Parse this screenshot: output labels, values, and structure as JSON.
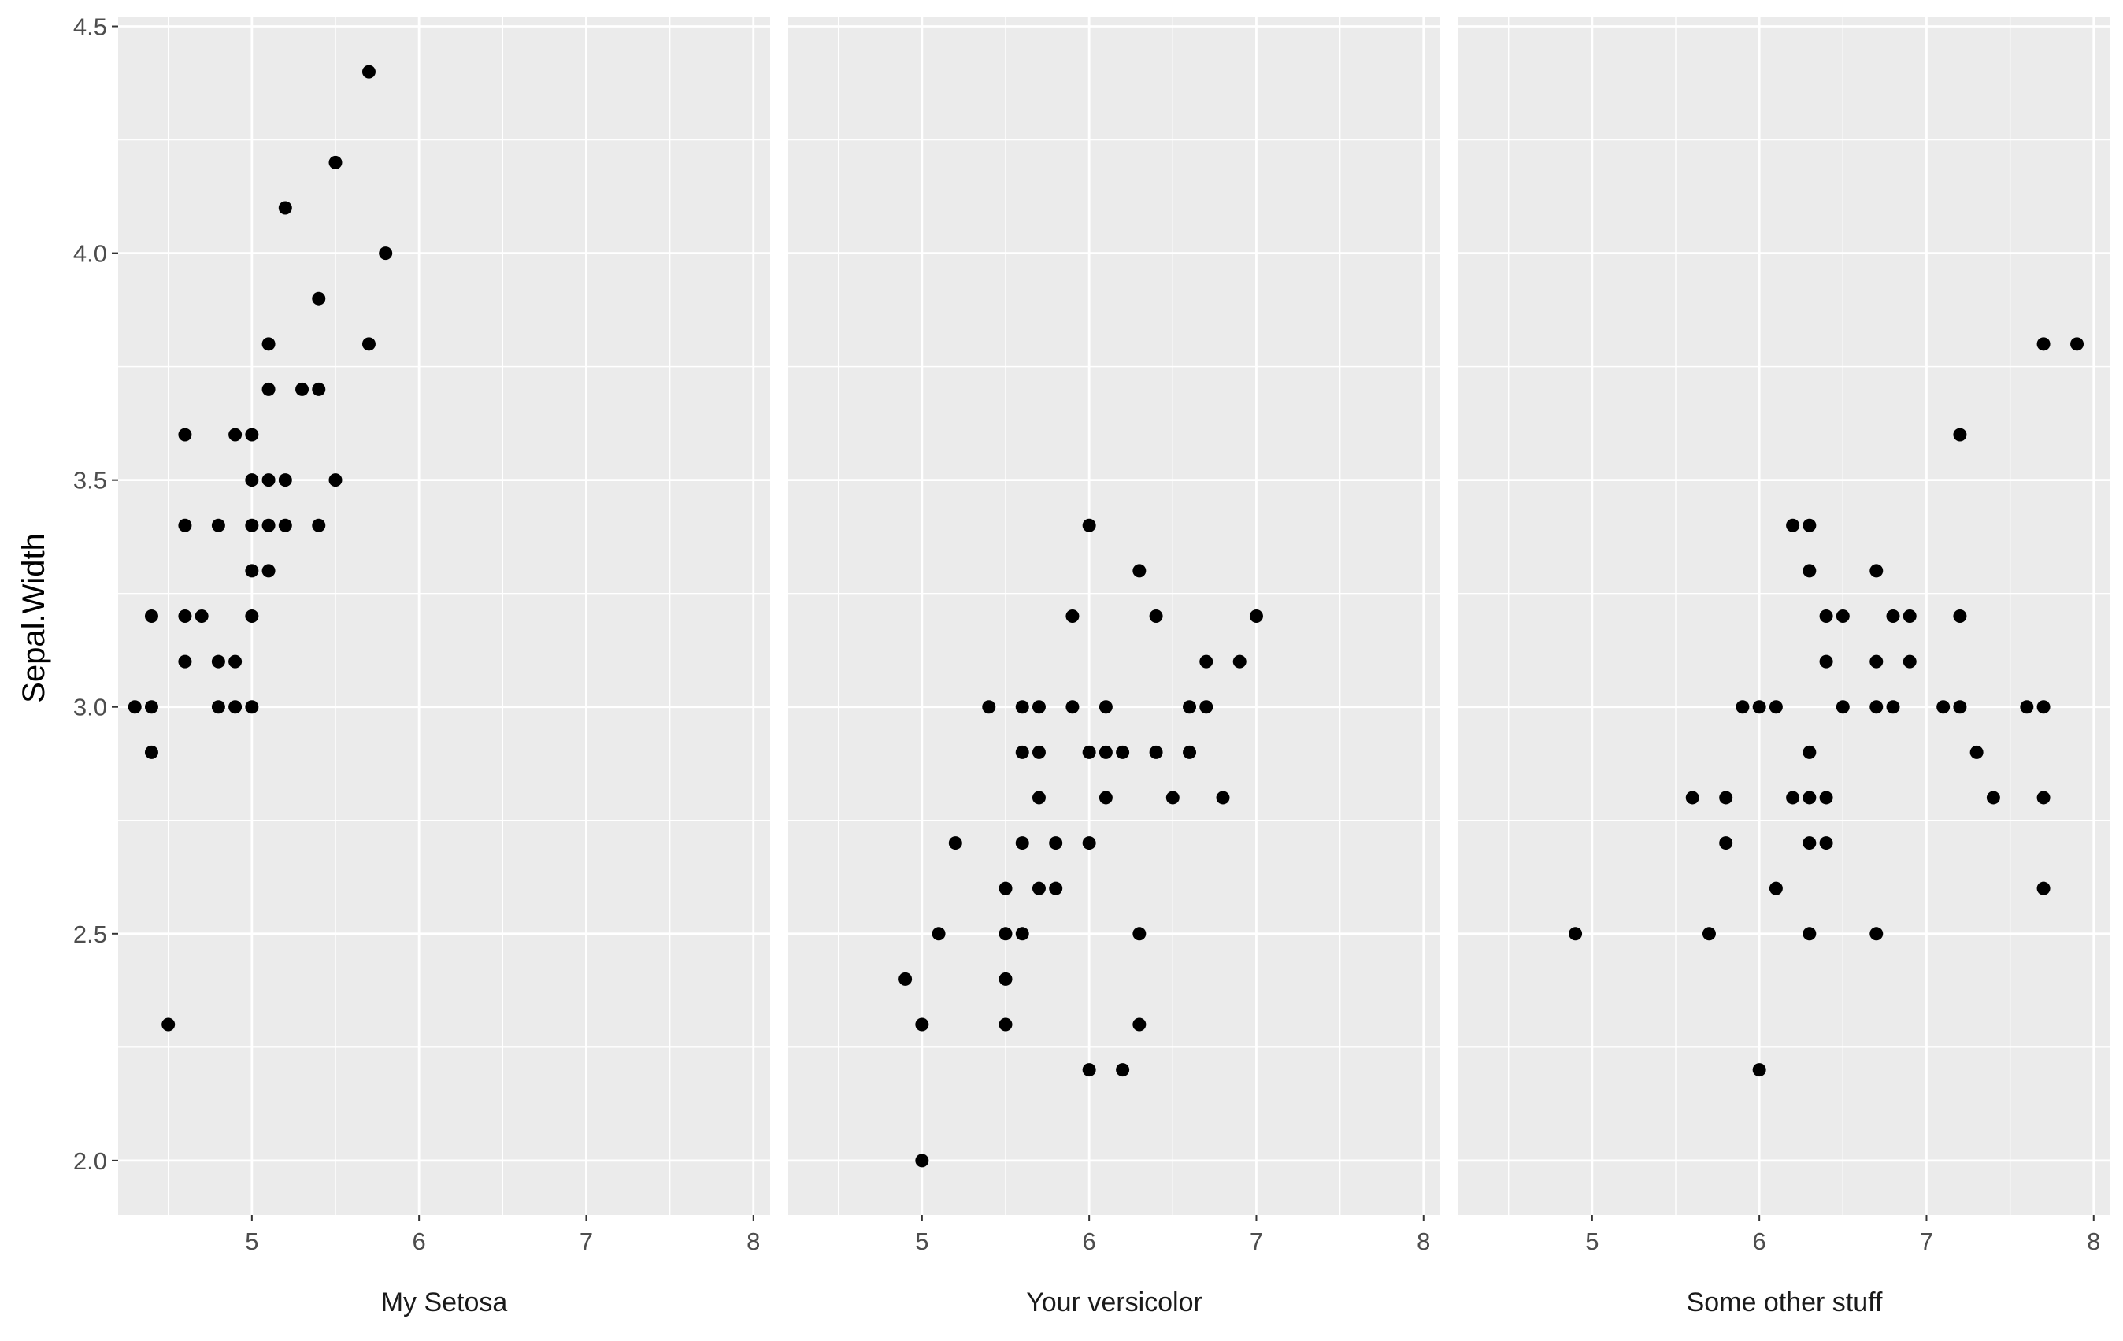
{
  "chart_data": {
    "type": "scatter",
    "ylabel": "Sepal.Width",
    "xlabel": "",
    "xlim": [
      4.2,
      8.1
    ],
    "ylim": [
      1.88,
      4.52
    ],
    "x_ticks": [
      "5",
      "6",
      "7",
      "8"
    ],
    "y_ticks": [
      "2.0",
      "2.5",
      "3.0",
      "3.5",
      "4.0",
      "4.5"
    ],
    "colors": {
      "panel": "#ebebeb",
      "grid": "#ffffff",
      "point": "#000000",
      "tick": "#4d4d4d"
    },
    "facets": [
      {
        "label": "My Setosa",
        "points": [
          [
            4.3,
            3.0
          ],
          [
            4.4,
            3.0
          ],
          [
            4.4,
            3.2
          ],
          [
            4.4,
            2.9
          ],
          [
            4.5,
            2.3
          ],
          [
            4.6,
            3.6
          ],
          [
            4.6,
            3.4
          ],
          [
            4.6,
            3.2
          ],
          [
            4.6,
            3.1
          ],
          [
            4.7,
            3.2
          ],
          [
            4.8,
            3.4
          ],
          [
            4.8,
            3.1
          ],
          [
            4.8,
            3.0
          ],
          [
            4.9,
            3.6
          ],
          [
            4.9,
            3.1
          ],
          [
            4.9,
            3.0
          ],
          [
            5.0,
            3.6
          ],
          [
            5.0,
            3.5
          ],
          [
            5.0,
            3.4
          ],
          [
            5.0,
            3.3
          ],
          [
            5.0,
            3.2
          ],
          [
            5.0,
            3.0
          ],
          [
            5.1,
            3.8
          ],
          [
            5.1,
            3.7
          ],
          [
            5.1,
            3.5
          ],
          [
            5.1,
            3.4
          ],
          [
            5.1,
            3.3
          ],
          [
            5.2,
            4.1
          ],
          [
            5.2,
            3.5
          ],
          [
            5.2,
            3.4
          ],
          [
            5.3,
            3.7
          ],
          [
            5.4,
            3.9
          ],
          [
            5.4,
            3.7
          ],
          [
            5.4,
            3.4
          ],
          [
            5.5,
            4.2
          ],
          [
            5.5,
            3.5
          ],
          [
            5.7,
            4.4
          ],
          [
            5.7,
            3.8
          ],
          [
            5.8,
            4.0
          ]
        ]
      },
      {
        "label": "Your versicolor",
        "points": [
          [
            4.9,
            2.4
          ],
          [
            5.0,
            2.3
          ],
          [
            5.0,
            2.0
          ],
          [
            5.1,
            2.5
          ],
          [
            5.2,
            2.7
          ],
          [
            5.4,
            3.0
          ],
          [
            5.5,
            2.6
          ],
          [
            5.5,
            2.5
          ],
          [
            5.5,
            2.4
          ],
          [
            5.5,
            2.3
          ],
          [
            5.6,
            3.0
          ],
          [
            5.6,
            2.9
          ],
          [
            5.6,
            2.7
          ],
          [
            5.6,
            2.5
          ],
          [
            5.7,
            3.0
          ],
          [
            5.7,
            2.9
          ],
          [
            5.7,
            2.8
          ],
          [
            5.7,
            2.6
          ],
          [
            5.8,
            2.7
          ],
          [
            5.8,
            2.6
          ],
          [
            5.9,
            3.2
          ],
          [
            5.9,
            3.0
          ],
          [
            6.0,
            3.4
          ],
          [
            6.0,
            2.9
          ],
          [
            6.0,
            2.7
          ],
          [
            6.0,
            2.2
          ],
          [
            6.1,
            3.0
          ],
          [
            6.1,
            2.9
          ],
          [
            6.1,
            2.8
          ],
          [
            6.2,
            2.9
          ],
          [
            6.2,
            2.2
          ],
          [
            6.3,
            3.3
          ],
          [
            6.3,
            2.5
          ],
          [
            6.3,
            2.3
          ],
          [
            6.4,
            3.2
          ],
          [
            6.4,
            2.9
          ],
          [
            6.5,
            2.8
          ],
          [
            6.6,
            3.0
          ],
          [
            6.6,
            2.9
          ],
          [
            6.7,
            3.1
          ],
          [
            6.7,
            3.0
          ],
          [
            6.8,
            2.8
          ],
          [
            6.9,
            3.1
          ],
          [
            7.0,
            3.2
          ]
        ]
      },
      {
        "label": "Some other stuff",
        "points": [
          [
            4.9,
            2.5
          ],
          [
            5.6,
            2.8
          ],
          [
            5.7,
            2.5
          ],
          [
            5.8,
            2.8
          ],
          [
            5.8,
            2.7
          ],
          [
            5.9,
            3.0
          ],
          [
            6.0,
            3.0
          ],
          [
            6.0,
            2.2
          ],
          [
            6.1,
            3.0
          ],
          [
            6.1,
            2.6
          ],
          [
            6.2,
            3.4
          ],
          [
            6.2,
            2.8
          ],
          [
            6.3,
            3.4
          ],
          [
            6.3,
            3.3
          ],
          [
            6.3,
            2.9
          ],
          [
            6.3,
            2.8
          ],
          [
            6.3,
            2.7
          ],
          [
            6.3,
            2.5
          ],
          [
            6.4,
            3.2
          ],
          [
            6.4,
            3.1
          ],
          [
            6.4,
            2.8
          ],
          [
            6.4,
            2.7
          ],
          [
            6.5,
            3.2
          ],
          [
            6.5,
            3.0
          ],
          [
            6.7,
            3.3
          ],
          [
            6.7,
            3.1
          ],
          [
            6.7,
            3.0
          ],
          [
            6.7,
            2.5
          ],
          [
            6.8,
            3.2
          ],
          [
            6.8,
            3.0
          ],
          [
            6.9,
            3.2
          ],
          [
            6.9,
            3.1
          ],
          [
            7.1,
            3.0
          ],
          [
            7.2,
            3.6
          ],
          [
            7.2,
            3.2
          ],
          [
            7.2,
            3.0
          ],
          [
            7.3,
            2.9
          ],
          [
            7.4,
            2.8
          ],
          [
            7.6,
            3.0
          ],
          [
            7.7,
            3.8
          ],
          [
            7.7,
            3.0
          ],
          [
            7.7,
            2.8
          ],
          [
            7.7,
            2.6
          ],
          [
            7.9,
            3.8
          ]
        ]
      }
    ]
  }
}
